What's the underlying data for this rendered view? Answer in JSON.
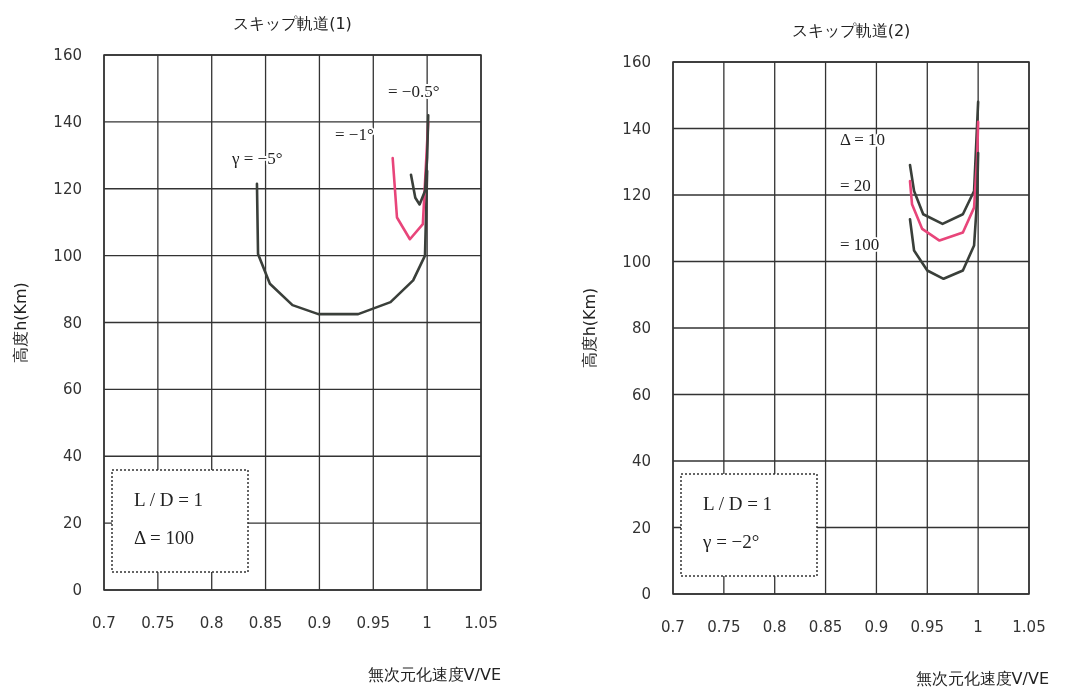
{
  "chart_data": [
    {
      "type": "line",
      "title": "スキップ軌道(1)",
      "xlabel": "無次元化速度V/VE",
      "ylabel": "高度h(Km)",
      "xlim": [
        0.7,
        1.05
      ],
      "ylim": [
        0,
        160
      ],
      "xticks": [
        0.7,
        0.75,
        0.8,
        0.85,
        0.9,
        0.95,
        1,
        1.05
      ],
      "yticks": [
        0,
        20,
        40,
        60,
        80,
        100,
        120,
        140,
        160
      ],
      "grid": true,
      "line_style": "solid",
      "marker": "none",
      "series": [
        {
          "color": "#3a3f3a",
          "x": [
            0.842,
            0.843,
            0.854,
            0.875,
            0.899,
            0.936,
            0.966,
            0.987,
            0.998,
            1.0
          ],
          "values": [
            121.5,
            100.5,
            91.6,
            85.2,
            82.5,
            82.5,
            86.1,
            92.6,
            100,
            125.3
          ]
        },
        {
          "color": "#e8457a",
          "x": [
            0.968,
            0.97,
            0.972,
            0.984,
            0.996,
            1.001
          ],
          "values": [
            129.2,
            120.3,
            111.4,
            104.9,
            109.4,
            140
          ]
        },
        {
          "color": "#3a3f3a",
          "x": [
            0.985,
            0.989,
            0.993,
            0.998,
            1.0,
            1.001
          ],
          "values": [
            124.2,
            117.3,
            115.3,
            119.3,
            129.2,
            142
          ]
        }
      ],
      "annotations": [
        "γ = −5°",
        "= −1°",
        "= −0.5°",
        "L / D = 1",
        "Δ = 100"
      ]
    },
    {
      "type": "line",
      "title": "スキップ軌道(2)",
      "xlabel": "無次元化速度V/VE",
      "ylabel": "高度h(Km)",
      "xlim": [
        0.7,
        1.05
      ],
      "ylim": [
        0,
        160
      ],
      "xticks": [
        0.7,
        0.75,
        0.8,
        0.85,
        0.9,
        0.95,
        1,
        1.05
      ],
      "yticks": [
        0,
        20,
        40,
        60,
        80,
        100,
        120,
        140,
        160
      ],
      "grid": true,
      "line_style": "solid",
      "marker": "none",
      "series": [
        {
          "color": "#3a3f3a",
          "x": [
            0.933,
            0.937,
            0.946,
            0.965,
            0.985,
            0.996,
            1.0
          ],
          "values": [
            129,
            121.2,
            114.2,
            111.3,
            114.2,
            121.2,
            148
          ]
        },
        {
          "color": "#e8457a",
          "x": [
            0.933,
            0.935,
            0.945,
            0.962,
            0.985,
            0.996,
            0.999,
            1.0
          ],
          "values": [
            124.2,
            117.2,
            109.8,
            106.3,
            108.7,
            116.2,
            131,
            142
          ]
        },
        {
          "color": "#3a3f3a",
          "x": [
            0.933,
            0.937,
            0.95,
            0.966,
            0.985,
            0.996,
            0.999,
            1.0
          ],
          "values": [
            112.7,
            103.3,
            97.3,
            94.8,
            97.3,
            104.8,
            118.7,
            132.6
          ]
        }
      ],
      "annotations": [
        "Δ = 10",
        "= 20",
        "= 100",
        "L / D = 1",
        "γ = −2°"
      ]
    }
  ]
}
